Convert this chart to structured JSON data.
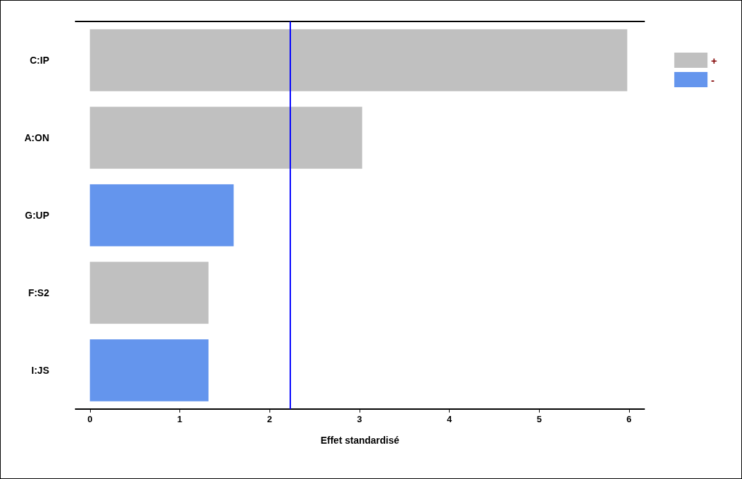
{
  "chart_data": {
    "type": "bar",
    "orientation": "horizontal",
    "xlabel": "Effet standardisé",
    "categories": [
      "C:IP",
      "A:ON",
      "G:UP",
      "F:S2",
      "I:JS"
    ],
    "series": [
      {
        "name": "+",
        "color": "#c0c0c0",
        "values": [
          5.98,
          3.03,
          null,
          1.32,
          null
        ]
      },
      {
        "name": "-",
        "color": "#6495ed",
        "values": [
          null,
          null,
          1.6,
          null,
          1.32
        ]
      }
    ],
    "xlim": [
      -0.16,
      6.17
    ],
    "xticks": [
      0,
      1,
      2,
      3,
      4,
      5,
      6
    ],
    "grid": false,
    "legend": "right",
    "ref_lines": [
      {
        "axis": "x",
        "value": 2.23,
        "color": "#0000ff"
      }
    ]
  }
}
